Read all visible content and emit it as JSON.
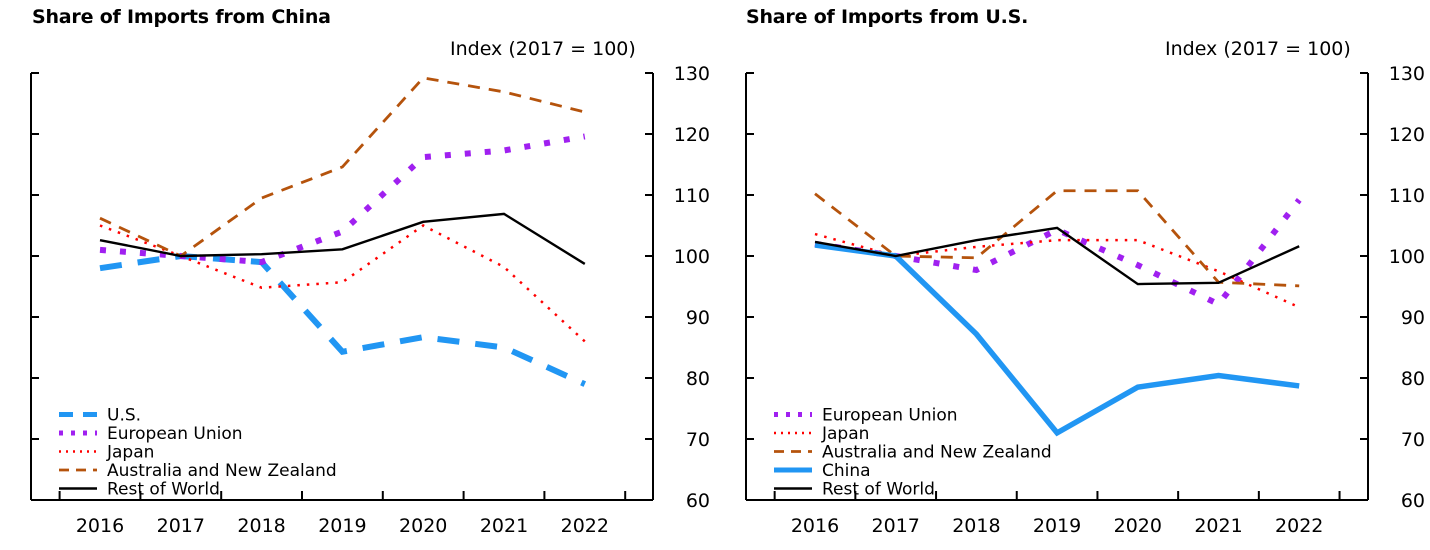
{
  "chart_data": [
    {
      "type": "line",
      "title": "Share of Imports from China",
      "ylabel": "Index (2017 = 100)",
      "xlabel": "",
      "categories": [
        "2016",
        "2017",
        "2018",
        "2019",
        "2020",
        "2021",
        "2022"
      ],
      "ylim": [
        60,
        130
      ],
      "yticks": [
        60,
        70,
        80,
        90,
        100,
        110,
        120,
        130
      ],
      "y_axis_side": "right",
      "grid": false,
      "legend_position": "bottom-left",
      "series": [
        {
          "name": "U.S.",
          "color": "#2196F3",
          "style": "long-dash-thick",
          "values": [
            98.0,
            100.0,
            99.0,
            84.3,
            86.7,
            85.0,
            79.0
          ]
        },
        {
          "name": "European Union",
          "color": "#A020F0",
          "style": "square-dot",
          "values": [
            101.0,
            100.0,
            99.0,
            104.0,
            116.2,
            117.3,
            119.6
          ]
        },
        {
          "name": "Japan",
          "color": "#FF0000",
          "style": "dot",
          "values": [
            105.0,
            100.0,
            94.8,
            95.7,
            105.0,
            98.2,
            86.0
          ]
        },
        {
          "name": "Australia and New Zealand",
          "color": "#B5530C",
          "style": "dash",
          "values": [
            106.2,
            100.0,
            109.5,
            114.6,
            129.2,
            126.9,
            123.6
          ]
        },
        {
          "name": "Rest of World",
          "color": "#000000",
          "style": "solid",
          "values": [
            102.6,
            100.0,
            100.3,
            101.1,
            105.6,
            106.9,
            98.7
          ]
        }
      ]
    },
    {
      "type": "line",
      "title": "Share of Imports from U.S.",
      "ylabel": "Index (2017 = 100)",
      "xlabel": "",
      "categories": [
        "2016",
        "2017",
        "2018",
        "2019",
        "2020",
        "2021",
        "2022"
      ],
      "ylim": [
        60,
        130
      ],
      "yticks": [
        60,
        70,
        80,
        90,
        100,
        110,
        120,
        130
      ],
      "y_axis_side": "right",
      "grid": false,
      "legend_position": "bottom-left",
      "series": [
        {
          "name": "European Union",
          "color": "#A020F0",
          "style": "square-dot",
          "values": [
            102.0,
            100.0,
            97.7,
            104.3,
            98.5,
            92.1,
            109.2
          ]
        },
        {
          "name": "Japan",
          "color": "#FF0000",
          "style": "dot",
          "values": [
            103.6,
            100.0,
            101.5,
            102.6,
            102.6,
            97.5,
            91.6
          ]
        },
        {
          "name": "Australia and New Zealand",
          "color": "#B5530C",
          "style": "dash",
          "values": [
            110.2,
            100.0,
            99.7,
            110.7,
            110.7,
            95.7,
            95.1
          ]
        },
        {
          "name": "China",
          "color": "#2196F3",
          "style": "solid-thick",
          "values": [
            101.8,
            100.0,
            87.2,
            71.0,
            78.5,
            80.4,
            78.7
          ]
        },
        {
          "name": "Rest of World",
          "color": "#000000",
          "style": "solid",
          "values": [
            102.3,
            100.0,
            102.6,
            104.6,
            95.4,
            95.6,
            101.6
          ]
        }
      ]
    }
  ]
}
